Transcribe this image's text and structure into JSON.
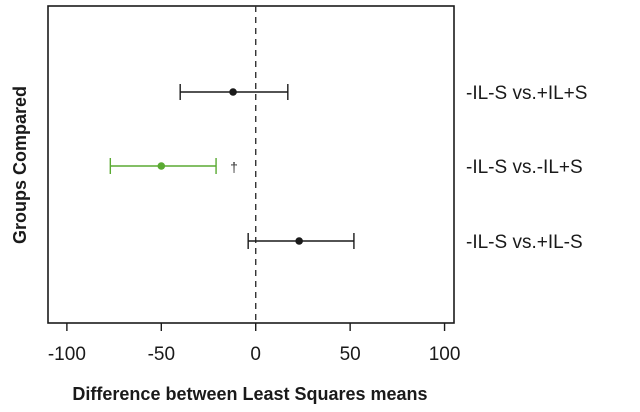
{
  "chart_data": {
    "type": "scatter",
    "subtype": "forest-plot",
    "xlabel": "Difference between Least Squares means",
    "ylabel": "Groups Compared",
    "xlim": [
      -110,
      105
    ],
    "xticks": [
      -100,
      -50,
      0,
      50,
      100
    ],
    "xtick_labels": [
      "-100",
      "-50",
      "0",
      "50",
      "100"
    ],
    "reference_line": 0,
    "grid": false,
    "categories": [
      "-IL-S vs.+IL+S",
      "-IL-S vs.-IL+S",
      "-IL-S vs.+IL-S"
    ],
    "points": [
      {
        "label": "-IL-S vs.+IL+S",
        "estimate": -12,
        "lower": -40,
        "upper": 17,
        "color": "#1a1a1a",
        "marker": ""
      },
      {
        "label": "-IL-S vs.-IL+S",
        "estimate": -50,
        "lower": -77,
        "upper": -21,
        "color": "#5aaa32",
        "marker": "†"
      },
      {
        "label": "-IL-S vs.+IL-S",
        "estimate": 23,
        "lower": -4,
        "upper": 52,
        "color": "#1a1a1a",
        "marker": ""
      }
    ]
  }
}
